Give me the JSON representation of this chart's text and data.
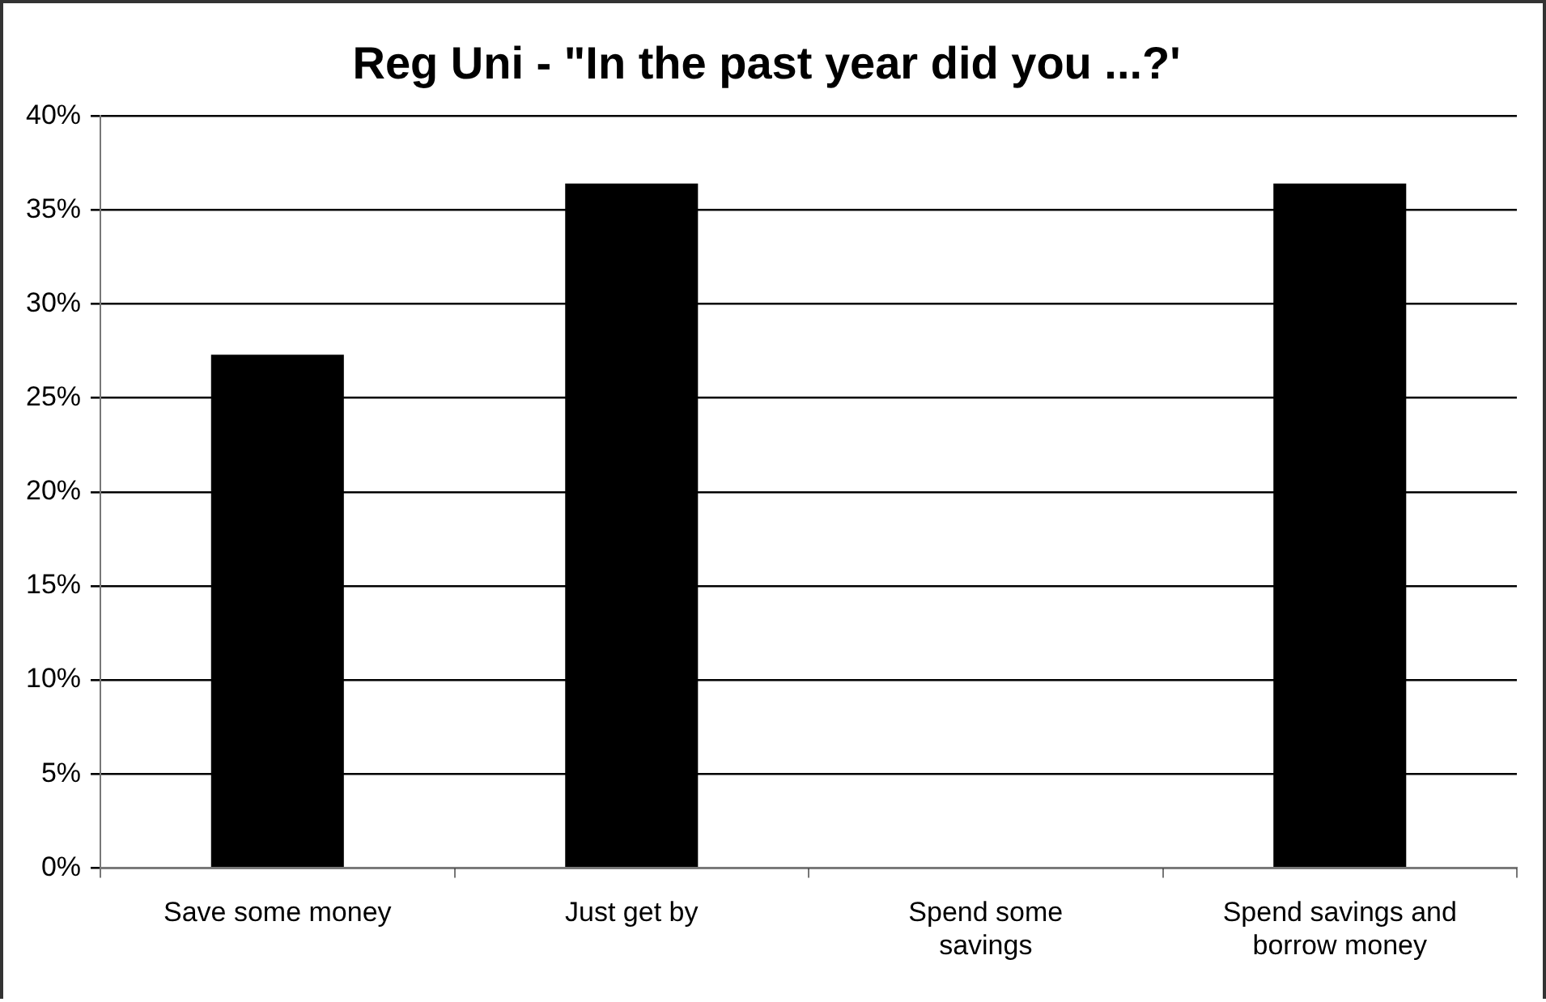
{
  "chart_data": {
    "type": "bar",
    "title": "Reg Uni - \"In the past year did you ...?'",
    "categories": [
      "Save some money",
      "Just get by",
      "Spend some savings",
      "Spend savings and borrow money"
    ],
    "values": [
      27.3,
      36.4,
      0,
      36.4
    ],
    "color": "#000000",
    "ylim": [
      0,
      40
    ],
    "yticks": [
      {
        "value": 0,
        "label": "0%"
      },
      {
        "value": 5,
        "label": "5%"
      },
      {
        "value": 10,
        "label": "10%"
      },
      {
        "value": 15,
        "label": "15%"
      },
      {
        "value": 20,
        "label": "20%"
      },
      {
        "value": 25,
        "label": "25%"
      },
      {
        "value": 30,
        "label": "30%"
      },
      {
        "value": 35,
        "label": "35%"
      },
      {
        "value": 40,
        "label": "40%"
      }
    ],
    "grid": "y",
    "legend": false
  }
}
